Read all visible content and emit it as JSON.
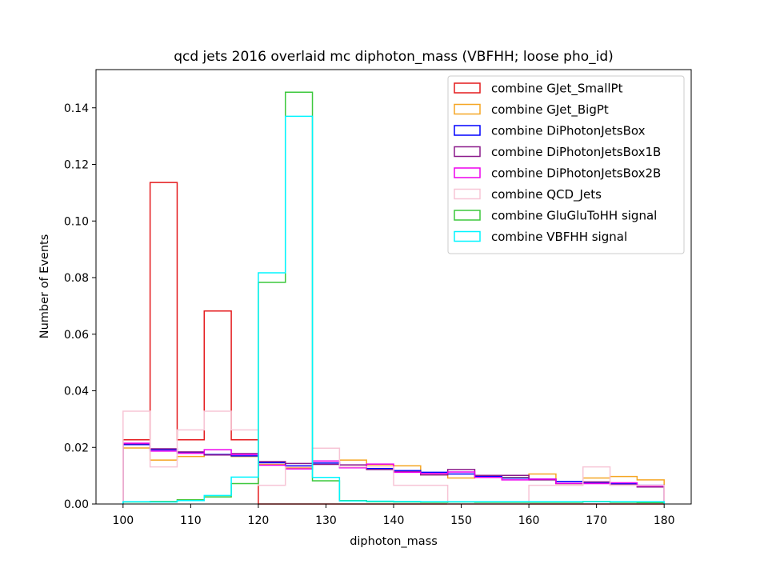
{
  "chart_data": {
    "type": "histogram",
    "title": "qcd jets 2016 overlaid mc diphoton_mass (VBFHH; loose pho_id)",
    "xlabel": "diphoton_mass",
    "ylabel": "Number of Events",
    "xlim": [
      96,
      184
    ],
    "ylim": [
      0,
      0.1535
    ],
    "bin_edges": [
      100,
      104,
      108,
      112,
      116,
      120,
      124,
      128,
      132,
      136,
      140,
      144,
      148,
      152,
      156,
      160,
      164,
      168,
      172,
      176,
      180
    ],
    "x_ticks": [
      100,
      110,
      120,
      130,
      140,
      150,
      160,
      170,
      180
    ],
    "x_tick_labels": [
      "100",
      "110",
      "120",
      "130",
      "140",
      "150",
      "160",
      "170",
      "180"
    ],
    "y_ticks": [
      0,
      0.02,
      0.04,
      0.06,
      0.08,
      0.1,
      0.12,
      0.14
    ],
    "y_tick_labels": [
      "0.00",
      "0.02",
      "0.04",
      "0.06",
      "0.08",
      "0.10",
      "0.12",
      "0.14"
    ],
    "grid": false,
    "legend_position": "top-right",
    "series": [
      {
        "name": "combine GJet_SmallPt",
        "color": "#e41a1c",
        "values": [
          0.0227,
          0.1136,
          0.0227,
          0.0682,
          0.0227,
          0.0,
          0.0,
          0.0,
          0.0,
          0.0,
          0.0,
          0.0,
          0.0,
          0.0,
          0.0,
          0.0,
          0.0,
          0.0,
          0.0,
          0.0
        ]
      },
      {
        "name": "combine GJet_BigPt",
        "color": "#f5a623",
        "values": [
          0.0198,
          0.0155,
          0.0168,
          0.0175,
          0.0168,
          0.014,
          0.0128,
          0.0145,
          0.0155,
          0.0138,
          0.0135,
          0.0103,
          0.0092,
          0.0096,
          0.0094,
          0.0106,
          0.0072,
          0.0092,
          0.0097,
          0.0085
        ]
      },
      {
        "name": "combine DiPhotonJetsBox",
        "color": "#0000ff",
        "values": [
          0.021,
          0.0192,
          0.0181,
          0.0175,
          0.017,
          0.0146,
          0.0135,
          0.0145,
          0.013,
          0.0125,
          0.0118,
          0.0112,
          0.0106,
          0.0098,
          0.0092,
          0.0088,
          0.008,
          0.0076,
          0.0072,
          0.0066
        ]
      },
      {
        "name": "combine DiPhotonJetsBox1B",
        "color": "#8b1a8b",
        "values": [
          0.0213,
          0.0195,
          0.0184,
          0.0173,
          0.0178,
          0.015,
          0.0143,
          0.014,
          0.0138,
          0.0122,
          0.0114,
          0.0103,
          0.0122,
          0.0101,
          0.0101,
          0.0085,
          0.0072,
          0.0078,
          0.0068,
          0.006
        ]
      },
      {
        "name": "combine DiPhotonJetsBox2B",
        "color": "#ee00ee",
        "values": [
          0.0215,
          0.0187,
          0.0179,
          0.0192,
          0.0175,
          0.0137,
          0.0124,
          0.0152,
          0.0128,
          0.0141,
          0.0112,
          0.0108,
          0.0113,
          0.0094,
          0.0085,
          0.0088,
          0.0073,
          0.0072,
          0.0075,
          0.0064
        ]
      },
      {
        "name": "combine QCD_Jets",
        "color": "#f7c5d6",
        "values": [
          0.0328,
          0.0131,
          0.0262,
          0.0328,
          0.0262,
          0.0066,
          0.0131,
          0.0197,
          0.0131,
          0.0131,
          0.0066,
          0.0066,
          0.0,
          0.0,
          0.0,
          0.0066,
          0.0066,
          0.0131,
          0.0066,
          0.0066
        ]
      },
      {
        "name": "combine GluGluToHH signal",
        "color": "#3cc83c",
        "values": [
          0.0007,
          0.0009,
          0.0015,
          0.0025,
          0.0072,
          0.0783,
          0.1455,
          0.0082,
          0.0012,
          0.0008,
          0.0007,
          0.0006,
          0.0007,
          0.0006,
          0.0006,
          0.0006,
          0.0006,
          0.0009,
          0.0006,
          0.0005
        ]
      },
      {
        "name": "combine VBFHH signal",
        "color": "#00f5ff",
        "values": [
          0.0008,
          0.0007,
          0.0012,
          0.003,
          0.0095,
          0.0817,
          0.137,
          0.0094,
          0.0011,
          0.001,
          0.0009,
          0.0008,
          0.0008,
          0.0008,
          0.0008,
          0.0008,
          0.0008,
          0.0008,
          0.0008,
          0.0008
        ]
      }
    ]
  }
}
